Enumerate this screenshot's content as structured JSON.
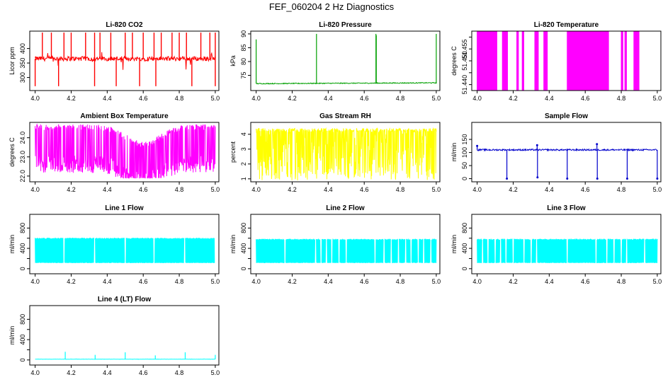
{
  "figure": {
    "title": "FEF_060204  2 Hz Diagnostics"
  },
  "chart_data": [
    {
      "type": "line",
      "title": "Li-820 CO2",
      "ylabel": "Licor ppm",
      "color": "#ff0000",
      "xlim": [
        3.97,
        5.02
      ],
      "ylim": [
        255,
        460
      ],
      "xticks": [
        4.0,
        4.2,
        4.4,
        4.6,
        4.8,
        5.0
      ],
      "xtick_labels": [
        "4.0",
        "4.2",
        "4.4",
        "4.6",
        "4.8",
        "5.0"
      ],
      "yticks": [
        300,
        350,
        400
      ],
      "ytick_labels": [
        "300",
        "350",
        "400"
      ],
      "series": [
        {
          "pattern": "spiky",
          "x_range": [
            4.0,
            5.0
          ],
          "baseline": 365,
          "noise": 8,
          "min": 270,
          "max": 455,
          "spikes_up": [
            4.04,
            4.09,
            4.16,
            4.2,
            4.28,
            4.33,
            4.36,
            4.42,
            4.5,
            4.54,
            4.6,
            4.66,
            4.7,
            4.76,
            4.8,
            4.84,
            4.92,
            4.97,
            5.0
          ],
          "spikes_down": [
            4.0,
            4.13,
            4.33,
            4.45,
            4.58,
            4.67,
            4.87,
            5.0
          ]
        }
      ]
    },
    {
      "type": "line",
      "title": "Li-820 Pressure",
      "ylabel": "kPa",
      "color": "#00a000",
      "xlim": [
        3.97,
        5.02
      ],
      "ylim": [
        69.5,
        91
      ],
      "xticks": [
        4.0,
        4.2,
        4.4,
        4.6,
        4.8,
        5.0
      ],
      "xtick_labels": [
        "4.0",
        "4.2",
        "4.4",
        "4.6",
        "4.8",
        "5.0"
      ],
      "yticks": [
        75,
        80,
        85,
        90
      ],
      "ytick_labels": [
        "75",
        "80",
        "85",
        "90"
      ],
      "series": [
        {
          "pattern": "baseline_spikes",
          "x_range": [
            4.0,
            5.0
          ],
          "baseline": 72.0,
          "baseline_end": 72.3,
          "noise": 0.15,
          "spikes": [
            [
              4.0,
              88
            ],
            [
              4.335,
              90
            ],
            [
              4.665,
              90
            ],
            [
              4.667,
              89.5
            ],
            [
              5.0,
              90
            ]
          ]
        }
      ]
    },
    {
      "type": "line",
      "title": "Li-820 Temperature",
      "ylabel": "degrees C",
      "color": "#ff00ff",
      "xlim": [
        3.97,
        5.02
      ],
      "ylim": [
        51.4375,
        51.4625
      ],
      "xticks": [
        4.0,
        4.2,
        4.4,
        4.6,
        4.8,
        5.0
      ],
      "xtick_labels": [
        "4.0",
        "4.2",
        "4.4",
        "4.6",
        "4.8",
        "5.0"
      ],
      "yticks": [
        51.44,
        51.445,
        51.45,
        51.455,
        51.46
      ],
      "ytick_labels": [
        "51.440",
        "",
        "51.450",
        "51.455",
        ""
      ],
      "series": [
        {
          "pattern": "binary",
          "x_range": [
            4.0,
            5.0
          ],
          "low": 51.4375,
          "high": 51.4625,
          "dense_regions": [
            [
              4.0,
              4.11
            ],
            [
              4.14,
              4.17
            ],
            [
              4.22,
              4.23
            ],
            [
              4.25,
              4.26
            ],
            [
              4.32,
              4.34
            ],
            [
              4.37,
              4.39
            ],
            [
              4.5,
              4.73
            ],
            [
              4.8,
              4.81
            ],
            [
              4.82,
              4.83
            ],
            [
              4.87,
              4.9
            ]
          ]
        }
      ]
    },
    {
      "type": "line",
      "title": "Ambient Box Temperature",
      "ylabel": "degrees C",
      "color": "#ff00ff",
      "xlim": [
        3.97,
        5.02
      ],
      "ylim": [
        21.7,
        24.8
      ],
      "xticks": [
        4.0,
        4.2,
        4.4,
        4.6,
        4.8,
        5.0
      ],
      "xtick_labels": [
        "4.0",
        "4.2",
        "4.4",
        "4.6",
        "4.8",
        "5.0"
      ],
      "yticks": [
        22.0,
        23.0,
        24.0
      ],
      "ytick_labels": [
        "22.0",
        "23.0",
        "24.0"
      ],
      "series": [
        {
          "pattern": "band_dip",
          "x_range": [
            4.0,
            5.0
          ],
          "top": 24.4,
          "bottom": 22.8,
          "dip_center": 4.6,
          "dip_depth": 0.9,
          "min": 21.9,
          "max": 24.8
        }
      ]
    },
    {
      "type": "line",
      "title": "Gas Stream RH",
      "ylabel": "percent",
      "color": "#ffff00",
      "xlim": [
        3.97,
        5.02
      ],
      "ylim": [
        0.8,
        4.8
      ],
      "xticks": [
        4.0,
        4.2,
        4.4,
        4.6,
        4.8,
        5.0
      ],
      "xtick_labels": [
        "4.0",
        "4.2",
        "4.4",
        "4.6",
        "4.8",
        "5.0"
      ],
      "yticks": [
        1,
        2,
        3,
        4
      ],
      "ytick_labels": [
        "1",
        "2",
        "3",
        "4"
      ],
      "series": [
        {
          "pattern": "noise_band",
          "x_range": [
            4.0,
            5.0
          ],
          "top": 4.4,
          "bottom": 1.3,
          "min": 0.9,
          "max": 4.6
        }
      ]
    },
    {
      "type": "line",
      "title": "Sample Flow",
      "ylabel": "ml/min",
      "color": "#0000cc",
      "xlim": [
        3.97,
        5.02
      ],
      "ylim": [
        -12,
        215
      ],
      "xticks": [
        4.0,
        4.2,
        4.4,
        4.6,
        4.8,
        5.0
      ],
      "xtick_labels": [
        "4.0",
        "4.2",
        "4.4",
        "4.6",
        "4.8",
        "5.0"
      ],
      "yticks": [
        0,
        50,
        100,
        150
      ],
      "ytick_labels": [
        "0",
        "50",
        "100",
        "150"
      ],
      "series": [
        {
          "pattern": "baseline_spikes",
          "x_range": [
            4.0,
            5.0
          ],
          "baseline": 110,
          "noise": 3,
          "spikes": [
            [
              4.0,
              125
            ],
            [
              4.165,
              0
            ],
            [
              4.333,
              128
            ],
            [
              4.335,
              5
            ],
            [
              4.5,
              0
            ],
            [
              4.665,
              132
            ],
            [
              4.667,
              0
            ],
            [
              4.833,
              0
            ],
            [
              5.0,
              0
            ]
          ]
        }
      ]
    },
    {
      "type": "line",
      "title": "Line 1 Flow",
      "ylabel": "ml/min",
      "color": "#00ffff",
      "xlim": [
        3.97,
        5.02
      ],
      "ylim": [
        -100,
        1070
      ],
      "xticks": [
        4.0,
        4.2,
        4.4,
        4.6,
        4.8,
        5.0
      ],
      "xtick_labels": [
        "4.0",
        "4.2",
        "4.4",
        "4.6",
        "4.8",
        "5.0"
      ],
      "yticks": [
        0,
        200,
        400,
        600,
        800
      ],
      "ytick_labels": [
        "0",
        "",
        "400",
        "",
        "800"
      ],
      "series": [
        {
          "pattern": "block",
          "x_range": [
            4.0,
            5.0
          ],
          "top": 610,
          "bottom": 110,
          "gaps": [
            4.16,
            4.33,
            4.5,
            4.66,
            4.83,
            5.0
          ]
        }
      ]
    },
    {
      "type": "line",
      "title": "Line 2 Flow",
      "ylabel": "ml/min",
      "color": "#00ffff",
      "xlim": [
        3.97,
        5.02
      ],
      "ylim": [
        -100,
        1070
      ],
      "xticks": [
        4.0,
        4.2,
        4.4,
        4.6,
        4.8,
        5.0
      ],
      "xtick_labels": [
        "4.0",
        "4.2",
        "4.4",
        "4.6",
        "4.8",
        "5.0"
      ],
      "yticks": [
        0,
        200,
        400,
        600,
        800
      ],
      "ytick_labels": [
        "0",
        "",
        "400",
        "",
        "800"
      ],
      "series": [
        {
          "pattern": "block",
          "x_range": [
            4.0,
            5.0
          ],
          "top": 590,
          "bottom": 110,
          "gaps": [
            4.16,
            4.33,
            4.36,
            4.39,
            4.42,
            4.46,
            4.5,
            4.66,
            4.71,
            4.75,
            4.79,
            4.83,
            4.86,
            4.9,
            4.93,
            4.97
          ]
        }
      ]
    },
    {
      "type": "line",
      "title": "Line 3 Flow",
      "ylabel": "ml/min",
      "color": "#00ffff",
      "xlim": [
        3.97,
        5.02
      ],
      "ylim": [
        -100,
        1070
      ],
      "xticks": [
        4.0,
        4.2,
        4.4,
        4.6,
        4.8,
        5.0
      ],
      "xtick_labels": [
        "4.0",
        "4.2",
        "4.4",
        "4.6",
        "4.8",
        "5.0"
      ],
      "yticks": [
        0,
        200,
        400,
        600,
        800
      ],
      "ytick_labels": [
        "0",
        "",
        "400",
        "",
        "800"
      ],
      "series": [
        {
          "pattern": "block",
          "x_range": [
            4.0,
            5.0
          ],
          "top": 590,
          "bottom": 110,
          "gaps": [
            4.03,
            4.06,
            4.1,
            4.13,
            4.16,
            4.2,
            4.26,
            4.3,
            4.33,
            4.5,
            4.66,
            4.72,
            4.76,
            4.8,
            4.83,
            4.93
          ]
        }
      ]
    },
    {
      "type": "line",
      "title": "Line 4 (LT) Flow",
      "ylabel": "ml/min",
      "color": "#00ffff",
      "xlim": [
        3.97,
        5.02
      ],
      "ylim": [
        -100,
        1070
      ],
      "xticks": [
        4.0,
        4.2,
        4.4,
        4.6,
        4.8,
        5.0
      ],
      "xtick_labels": [
        "4.0",
        "4.2",
        "4.4",
        "4.6",
        "4.8",
        "5.0"
      ],
      "yticks": [
        0,
        200,
        400,
        600,
        800
      ],
      "ytick_labels": [
        "0",
        "",
        "400",
        "",
        "800"
      ],
      "series": [
        {
          "pattern": "baseline_spikes",
          "x_range": [
            4.0,
            5.0
          ],
          "baseline": 15,
          "noise": 3,
          "spikes": [
            [
              4.167,
              160
            ],
            [
              4.333,
              100
            ],
            [
              4.5,
              150
            ],
            [
              4.667,
              90
            ],
            [
              4.833,
              150
            ],
            [
              5.0,
              100
            ]
          ]
        }
      ]
    }
  ]
}
